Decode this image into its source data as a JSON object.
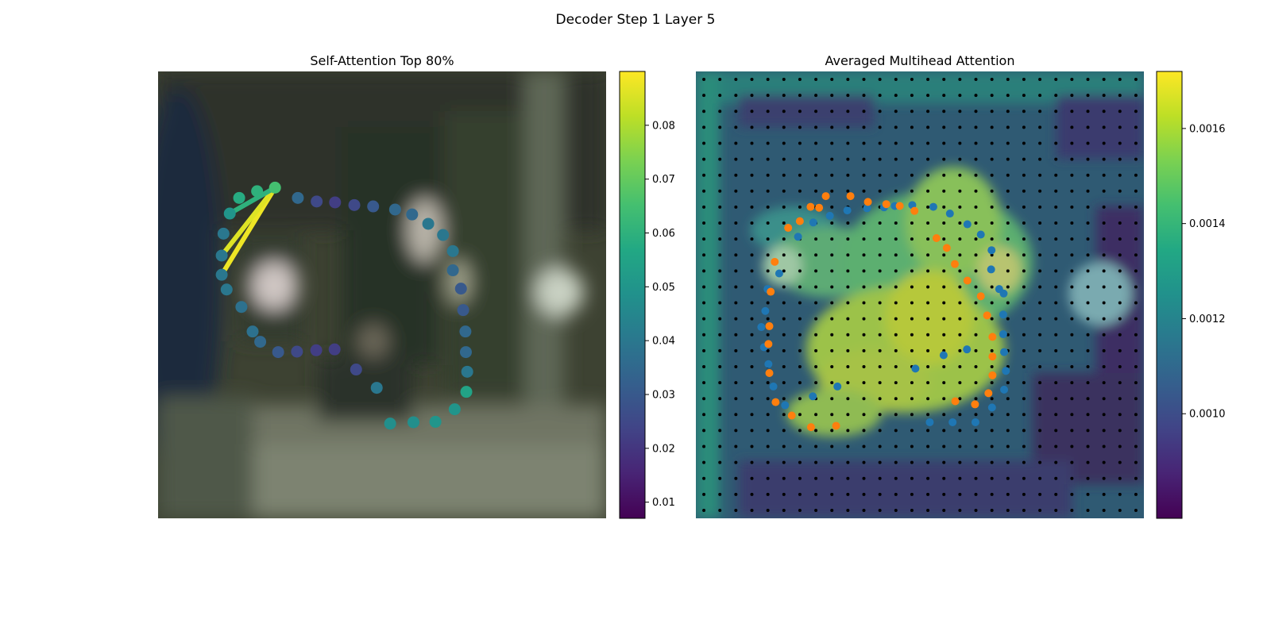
{
  "figure": {
    "suptitle": "Decoder Step 1 Layer 5"
  },
  "chart_data": [
    {
      "type": "scatter",
      "title": "Self-Attention Top 80%",
      "background": "blurred camera image (street scene)",
      "xlim": [
        0,
        1
      ],
      "ylim": [
        0,
        1
      ],
      "colormap": "viridis",
      "colorbar": {
        "min": 0.007,
        "max": 0.09,
        "ticks": [
          0.01,
          0.02,
          0.03,
          0.04,
          0.05,
          0.06,
          0.07,
          0.08
        ],
        "tick_labels": [
          "0.01",
          "0.02",
          "0.03",
          "0.04",
          "0.05",
          "0.06",
          "0.07",
          "0.08"
        ]
      },
      "query_point": {
        "x": 0.261,
        "y": 0.26,
        "value": 0.065
      },
      "points": [
        {
          "x": 0.142,
          "y": 0.455,
          "v": 0.04
        },
        {
          "x": 0.142,
          "y": 0.412,
          "v": 0.04
        },
        {
          "x": 0.146,
          "y": 0.363,
          "v": 0.04
        },
        {
          "x": 0.16,
          "y": 0.318,
          "v": 0.05
        },
        {
          "x": 0.181,
          "y": 0.283,
          "v": 0.058
        },
        {
          "x": 0.221,
          "y": 0.268,
          "v": 0.06
        },
        {
          "x": 0.261,
          "y": 0.26,
          "v": 0.065
        },
        {
          "x": 0.312,
          "y": 0.283,
          "v": 0.035
        },
        {
          "x": 0.354,
          "y": 0.291,
          "v": 0.025
        },
        {
          "x": 0.395,
          "y": 0.293,
          "v": 0.022
        },
        {
          "x": 0.438,
          "y": 0.299,
          "v": 0.025
        },
        {
          "x": 0.48,
          "y": 0.302,
          "v": 0.03
        },
        {
          "x": 0.529,
          "y": 0.309,
          "v": 0.035
        },
        {
          "x": 0.567,
          "y": 0.32,
          "v": 0.035
        },
        {
          "x": 0.603,
          "y": 0.341,
          "v": 0.04
        },
        {
          "x": 0.636,
          "y": 0.366,
          "v": 0.04
        },
        {
          "x": 0.658,
          "y": 0.402,
          "v": 0.04
        },
        {
          "x": 0.658,
          "y": 0.445,
          "v": 0.035
        },
        {
          "x": 0.676,
          "y": 0.486,
          "v": 0.03
        },
        {
          "x": 0.681,
          "y": 0.534,
          "v": 0.03
        },
        {
          "x": 0.686,
          "y": 0.582,
          "v": 0.035
        },
        {
          "x": 0.687,
          "y": 0.628,
          "v": 0.035
        },
        {
          "x": 0.69,
          "y": 0.672,
          "v": 0.04
        },
        {
          "x": 0.688,
          "y": 0.717,
          "v": 0.055
        },
        {
          "x": 0.662,
          "y": 0.756,
          "v": 0.05
        },
        {
          "x": 0.619,
          "y": 0.784,
          "v": 0.05
        },
        {
          "x": 0.57,
          "y": 0.785,
          "v": 0.048
        },
        {
          "x": 0.518,
          "y": 0.788,
          "v": 0.048
        },
        {
          "x": 0.488,
          "y": 0.708,
          "v": 0.04
        },
        {
          "x": 0.442,
          "y": 0.667,
          "v": 0.025
        },
        {
          "x": 0.394,
          "y": 0.622,
          "v": 0.022
        },
        {
          "x": 0.353,
          "y": 0.624,
          "v": 0.022
        },
        {
          "x": 0.31,
          "y": 0.627,
          "v": 0.025
        },
        {
          "x": 0.268,
          "y": 0.628,
          "v": 0.03
        },
        {
          "x": 0.228,
          "y": 0.605,
          "v": 0.035
        },
        {
          "x": 0.211,
          "y": 0.582,
          "v": 0.038
        },
        {
          "x": 0.186,
          "y": 0.527,
          "v": 0.038
        },
        {
          "x": 0.153,
          "y": 0.488,
          "v": 0.04
        }
      ],
      "attention_lines": [
        {
          "x": 0.142,
          "y": 0.455,
          "w": 0.088
        },
        {
          "x": 0.142,
          "y": 0.412,
          "w": 0.086
        },
        {
          "x": 0.16,
          "y": 0.318,
          "w": 0.06
        }
      ]
    },
    {
      "type": "heatmap",
      "title": "Averaged Multihead Attention",
      "background": "attention heatmap blended with camera image",
      "grid": {
        "rows": 28,
        "cols": 28
      },
      "colormap": "viridis",
      "colorbar": {
        "min": 0.00078,
        "max": 0.00172,
        "ticks": [
          0.001,
          0.0012,
          0.0014,
          0.0016
        ],
        "tick_labels": [
          "0.0010",
          "0.0012",
          "0.0014",
          "0.0016"
        ]
      },
      "series": [
        {
          "color": "#1f77b4",
          "points": [
            {
              "x": 0.522,
              "y": 0.785
            },
            {
              "x": 0.573,
              "y": 0.785
            },
            {
              "x": 0.624,
              "y": 0.785
            },
            {
              "x": 0.661,
              "y": 0.752
            },
            {
              "x": 0.688,
              "y": 0.712
            },
            {
              "x": 0.692,
              "y": 0.67
            },
            {
              "x": 0.688,
              "y": 0.628
            },
            {
              "x": 0.686,
              "y": 0.588
            },
            {
              "x": 0.686,
              "y": 0.544
            },
            {
              "x": 0.687,
              "y": 0.497
            },
            {
              "x": 0.677,
              "y": 0.487
            },
            {
              "x": 0.659,
              "y": 0.443
            },
            {
              "x": 0.66,
              "y": 0.4
            },
            {
              "x": 0.636,
              "y": 0.365
            },
            {
              "x": 0.606,
              "y": 0.342
            },
            {
              "x": 0.567,
              "y": 0.318
            },
            {
              "x": 0.53,
              "y": 0.303
            },
            {
              "x": 0.483,
              "y": 0.299
            },
            {
              "x": 0.444,
              "y": 0.301
            },
            {
              "x": 0.42,
              "y": 0.304
            },
            {
              "x": 0.382,
              "y": 0.306
            },
            {
              "x": 0.338,
              "y": 0.311
            },
            {
              "x": 0.299,
              "y": 0.323
            },
            {
              "x": 0.262,
              "y": 0.338
            },
            {
              "x": 0.228,
              "y": 0.37
            },
            {
              "x": 0.186,
              "y": 0.452
            },
            {
              "x": 0.16,
              "y": 0.487
            },
            {
              "x": 0.155,
              "y": 0.536
            },
            {
              "x": 0.146,
              "y": 0.572
            },
            {
              "x": 0.152,
              "y": 0.617
            },
            {
              "x": 0.162,
              "y": 0.655
            },
            {
              "x": 0.173,
              "y": 0.705
            },
            {
              "x": 0.199,
              "y": 0.747
            },
            {
              "x": 0.261,
              "y": 0.727
            },
            {
              "x": 0.316,
              "y": 0.705
            },
            {
              "x": 0.49,
              "y": 0.665
            },
            {
              "x": 0.553,
              "y": 0.635
            },
            {
              "x": 0.605,
              "y": 0.622
            }
          ]
        },
        {
          "color": "#ff7f0e",
          "points": [
            {
              "x": 0.579,
              "y": 0.738
            },
            {
              "x": 0.623,
              "y": 0.745
            },
            {
              "x": 0.653,
              "y": 0.72
            },
            {
              "x": 0.662,
              "y": 0.68
            },
            {
              "x": 0.662,
              "y": 0.638
            },
            {
              "x": 0.662,
              "y": 0.594
            },
            {
              "x": 0.65,
              "y": 0.546
            },
            {
              "x": 0.636,
              "y": 0.503
            },
            {
              "x": 0.606,
              "y": 0.468
            },
            {
              "x": 0.578,
              "y": 0.431
            },
            {
              "x": 0.56,
              "y": 0.395
            },
            {
              "x": 0.537,
              "y": 0.373
            },
            {
              "x": 0.488,
              "y": 0.312
            },
            {
              "x": 0.455,
              "y": 0.301
            },
            {
              "x": 0.425,
              "y": 0.297
            },
            {
              "x": 0.384,
              "y": 0.292
            },
            {
              "x": 0.345,
              "y": 0.279
            },
            {
              "x": 0.29,
              "y": 0.279
            },
            {
              "x": 0.275,
              "y": 0.305
            },
            {
              "x": 0.256,
              "y": 0.303
            },
            {
              "x": 0.232,
              "y": 0.335
            },
            {
              "x": 0.206,
              "y": 0.35
            },
            {
              "x": 0.176,
              "y": 0.426
            },
            {
              "x": 0.167,
              "y": 0.493
            },
            {
              "x": 0.164,
              "y": 0.57
            },
            {
              "x": 0.162,
              "y": 0.61
            },
            {
              "x": 0.164,
              "y": 0.675
            },
            {
              "x": 0.178,
              "y": 0.74
            },
            {
              "x": 0.214,
              "y": 0.77
            },
            {
              "x": 0.257,
              "y": 0.796
            },
            {
              "x": 0.313,
              "y": 0.793
            }
          ]
        }
      ]
    }
  ]
}
